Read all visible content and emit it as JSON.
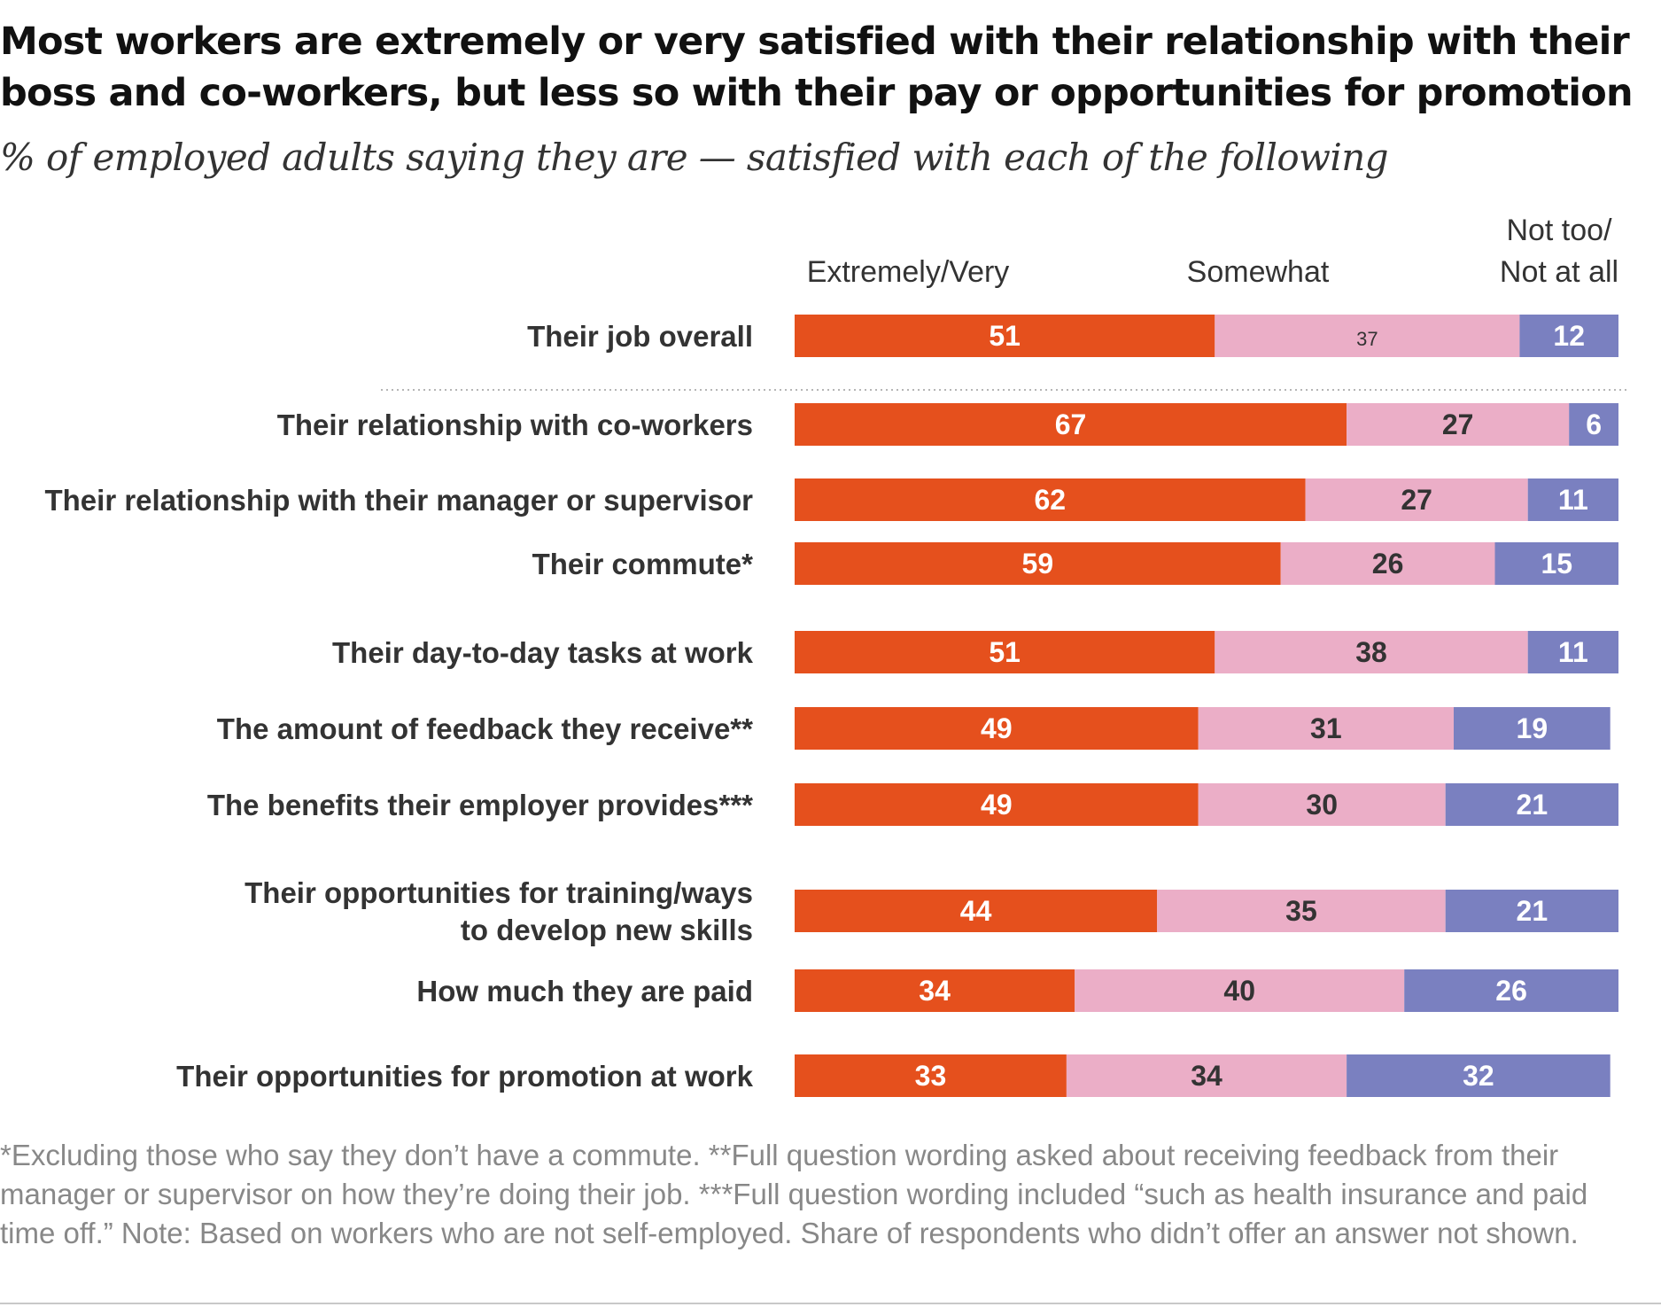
{
  "title": "Most workers are extremely or very satisfied with their relationship with their boss and co-workers, but less so with their pay or opportunities for promotion",
  "subtitle": "% of employed adults saying they are — satisfied with each of the following",
  "chart_data": {
    "type": "bar",
    "orientation": "horizontal",
    "stacked": true,
    "categories": [
      "Their job overall",
      "Their relationship with co-workers",
      "Their relationship with their manager or supervisor",
      "Their commute*",
      "Their day-to-day tasks at work",
      "The amount of feedback they receive**",
      "The benefits their employer provides***",
      "Their opportunities for training/ways to develop new skills",
      "How much they are paid",
      "Their opportunities for promotion at work"
    ],
    "category_lines": [
      [
        "Their job overall"
      ],
      [
        "Their relationship with co-workers"
      ],
      [
        "Their relationship with their manager or supervisor"
      ],
      [
        "Their commute*"
      ],
      [
        "Their day-to-day tasks at work"
      ],
      [
        "The amount of feedback they receive**"
      ],
      [
        "The benefits their employer provides***"
      ],
      [
        "Their opportunities for training/ways",
        "to develop new skills"
      ],
      [
        "How much they are paid"
      ],
      [
        "Their opportunities for promotion at work"
      ]
    ],
    "series": [
      {
        "name": "Extremely/Very",
        "name_lines": [
          "Extremely/Very"
        ],
        "color": "#e5501d",
        "label_color": "#ffffff",
        "values": [
          51,
          67,
          62,
          59,
          51,
          49,
          49,
          44,
          34,
          33
        ]
      },
      {
        "name": "Somewhat",
        "name_lines": [
          "Somewhat"
        ],
        "color": "#ebaec7",
        "label_color": "#333333",
        "values": [
          37,
          27,
          27,
          26,
          38,
          31,
          30,
          35,
          40,
          34
        ]
      },
      {
        "name": "Not too/ Not at all",
        "name_lines": [
          "Not too/",
          "Not at all"
        ],
        "color": "#7a80c0",
        "label_color": "#ffffff",
        "values": [
          12,
          6,
          11,
          15,
          11,
          19,
          21,
          21,
          26,
          32
        ]
      }
    ],
    "separator_after": [
      "Their job overall"
    ],
    "xlim": [
      0,
      100
    ],
    "legend": "top",
    "grid": false
  },
  "footnote": "*Excluding those who say they don’t have a commute. **Full question wording asked about receiving feedback from their manager or supervisor on how they’re doing their job. ***Full question wording included “such as health insurance and paid time off.” Note: Based on workers who are not self-employed. Share of respondents who didn’t offer an answer not shown."
}
